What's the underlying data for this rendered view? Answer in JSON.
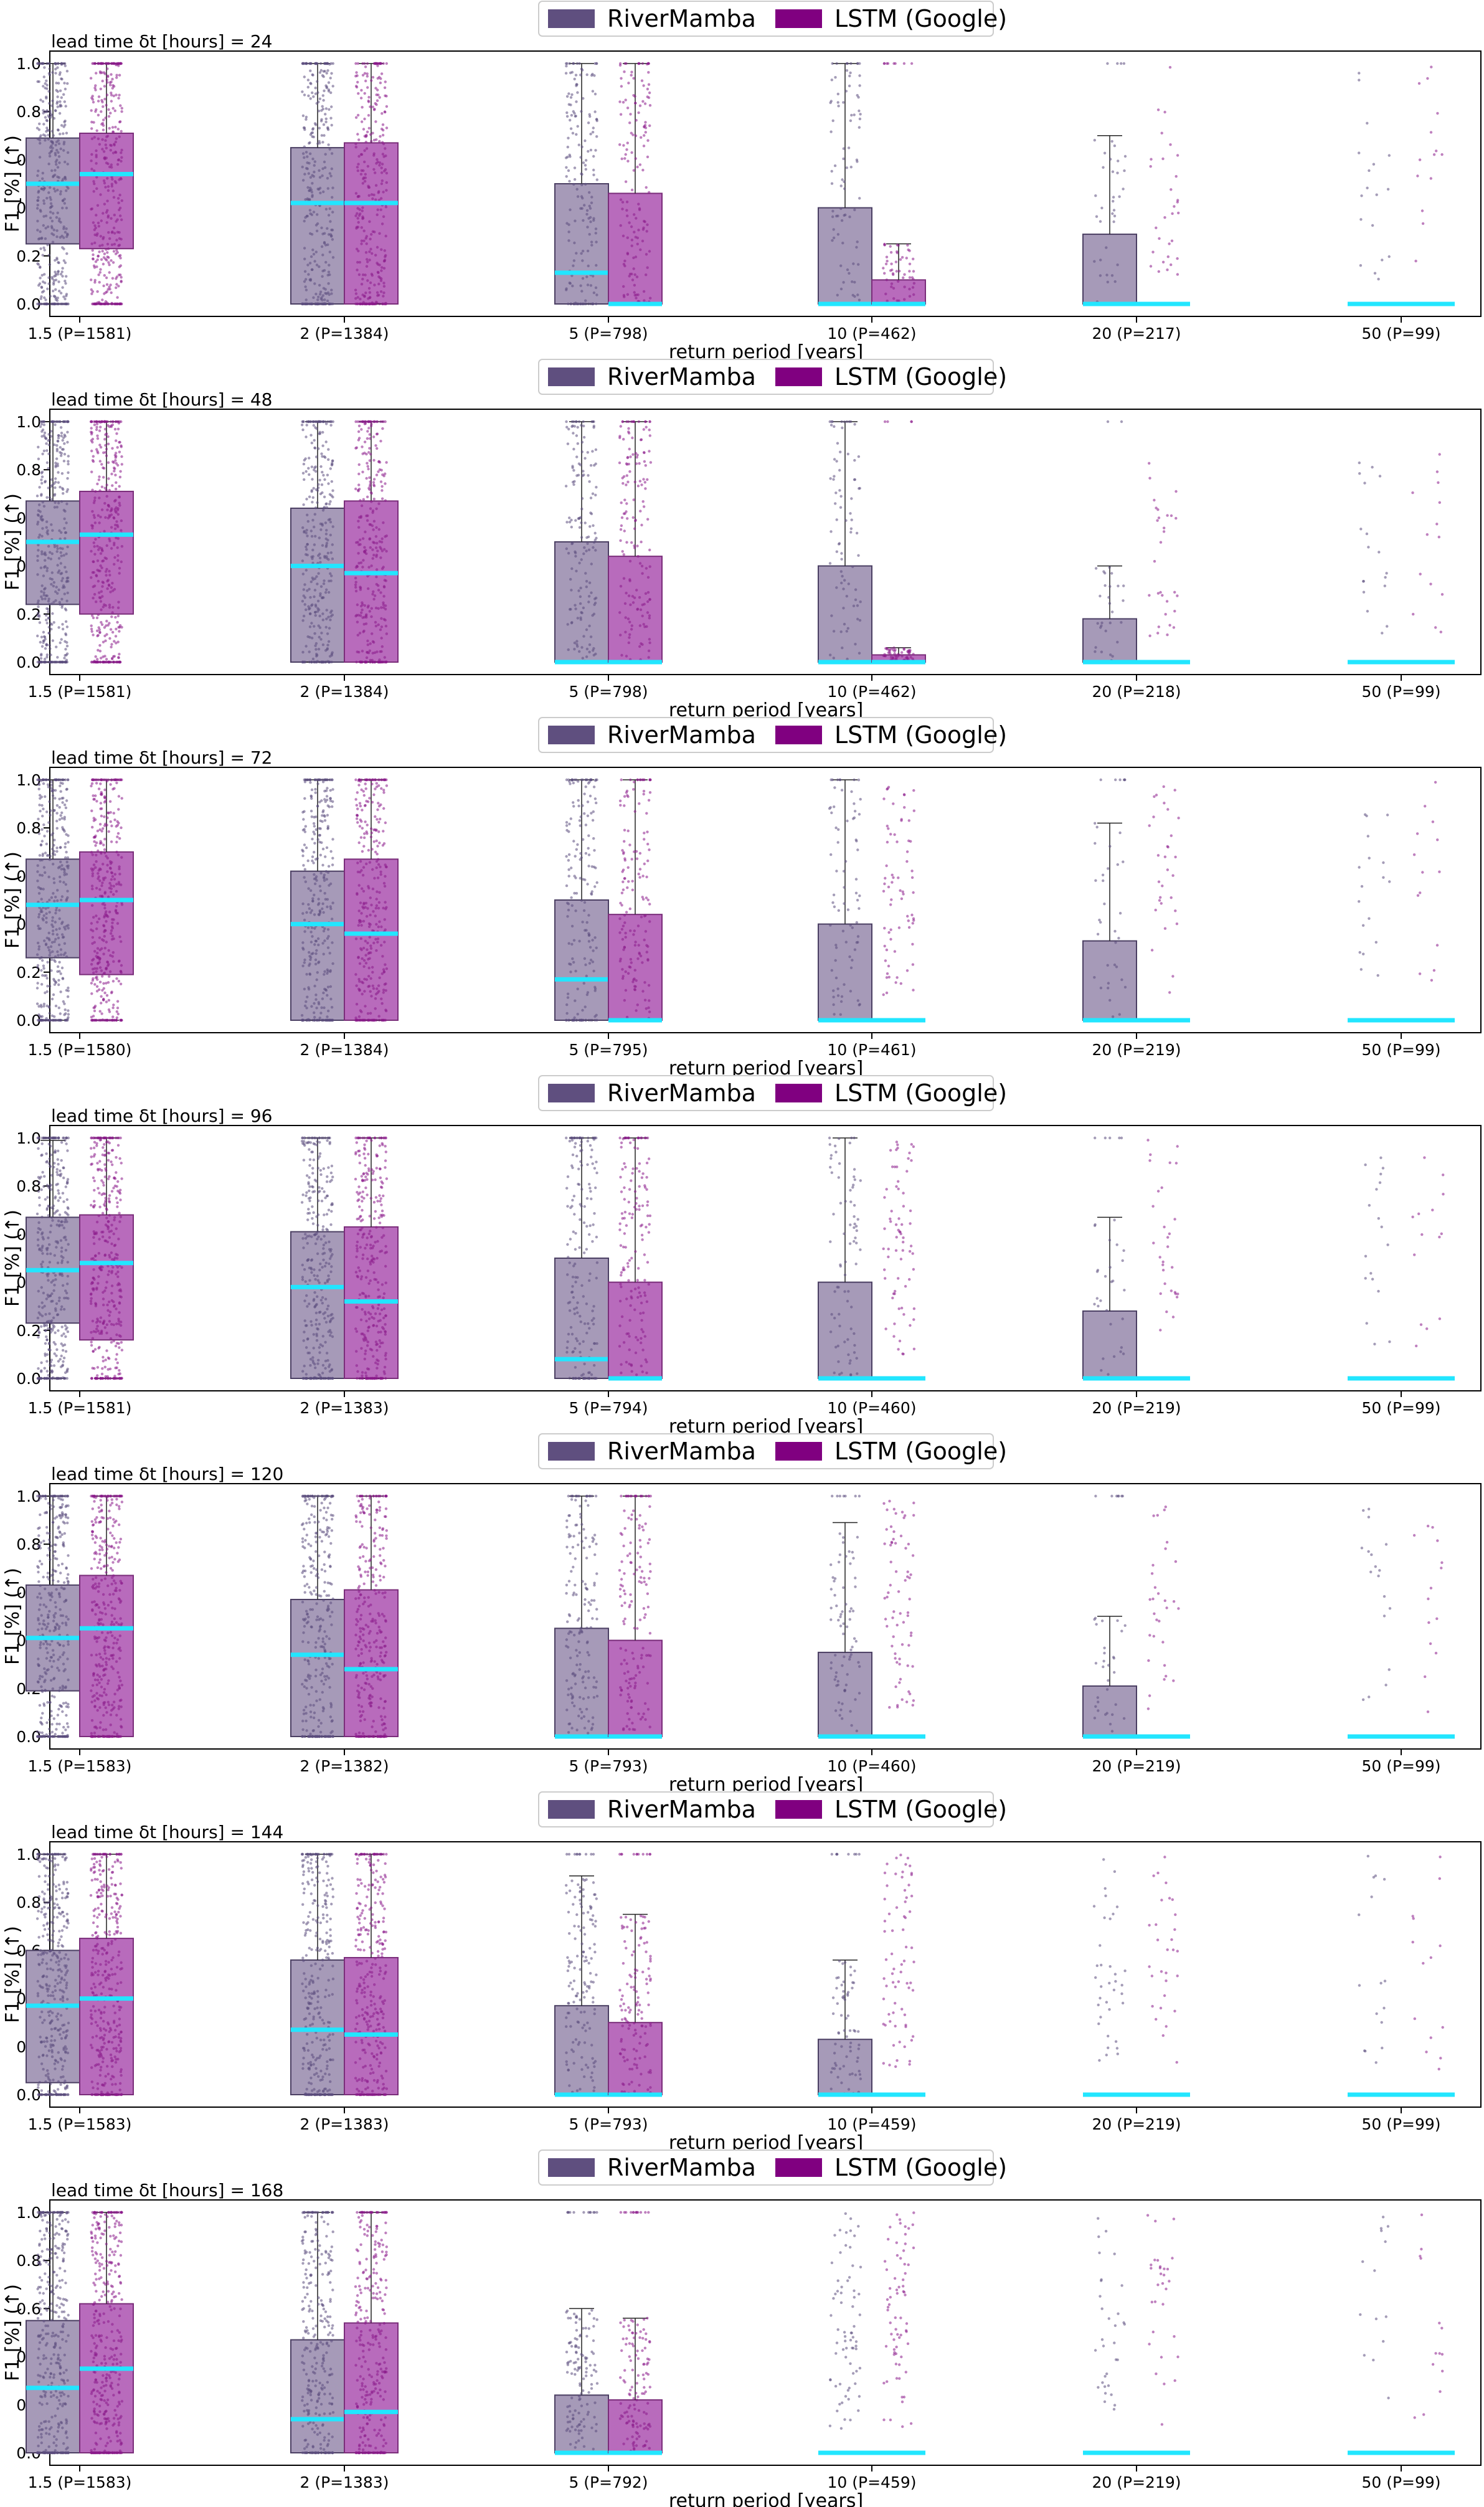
{
  "colors": {
    "rivermamba_fill": "#a69ab8",
    "rivermamba_edge": "#4b3f63",
    "rivermamba_legend": "#5f4f7f",
    "rivermamba_dot": "#5b4c7d",
    "lstm_fill": "#b86bbc",
    "lstm_edge": "#7a2d7a",
    "lstm_legend": "#800080",
    "lstm_dot": "#8a1a8a",
    "median": "#22e6ff",
    "whisker": "#222222"
  },
  "legend": {
    "items": [
      {
        "label": "RiverMamba",
        "swatch": "rivermamba_legend"
      },
      {
        "label": "LSTM (Google)",
        "swatch": "lstm_legend"
      }
    ]
  },
  "chart_data": {
    "type": "box",
    "xlabel": "return period [years]",
    "ylabel": "F1 [%] (↑)",
    "ylim": [
      0,
      1
    ],
    "yticks": [
      "0.0",
      "0.2",
      "0.4",
      "0.6",
      "0.8",
      "1.0"
    ],
    "series": [
      "RiverMamba",
      "LSTM (Google)"
    ],
    "panels": [
      {
        "title": "lead time δt [hours] = 24",
        "categories": [
          "1.5 (P=1581)",
          "2 (P=1384)",
          "5 (P=798)",
          "10 (P=462)",
          "20 (P=217)",
          "50 (P=99)"
        ],
        "rivermamba": [
          {
            "q1": 0.25,
            "q3": 0.69,
            "median": 0.5,
            "wlo": 0.0,
            "whi": 1.0,
            "n": 380
          },
          {
            "q1": 0.0,
            "q3": 0.65,
            "median": 0.42,
            "wlo": 0.0,
            "whi": 1.0,
            "n": 320
          },
          {
            "q1": 0.0,
            "q3": 0.5,
            "median": 0.13,
            "wlo": 0.0,
            "whi": 1.0,
            "n": 180
          },
          {
            "q1": 0.0,
            "q3": 0.4,
            "median": 0.0,
            "wlo": 0.0,
            "whi": 1.0,
            "n": 90
          },
          {
            "q1": 0.0,
            "q3": 0.29,
            "median": 0.0,
            "wlo": 0.0,
            "whi": 0.7,
            "n": 40
          },
          {
            "q1": 0.0,
            "q3": 0.0,
            "median": 0.0,
            "wlo": 0.0,
            "whi": 0.0,
            "n": 18
          }
        ],
        "lstm": [
          {
            "q1": 0.23,
            "q3": 0.71,
            "median": 0.54,
            "wlo": 0.0,
            "whi": 1.0,
            "n": 380
          },
          {
            "q1": 0.0,
            "q3": 0.67,
            "median": 0.42,
            "wlo": 0.0,
            "whi": 1.0,
            "n": 320
          },
          {
            "q1": 0.0,
            "q3": 0.46,
            "median": 0.0,
            "wlo": 0.0,
            "whi": 1.0,
            "n": 170
          },
          {
            "q1": 0.0,
            "q3": 0.1,
            "median": 0.0,
            "wlo": 0.0,
            "whi": 0.25,
            "n": 70
          },
          {
            "q1": 0.0,
            "q3": 0.0,
            "median": 0.0,
            "wlo": 0.0,
            "whi": 0.0,
            "n": 30
          },
          {
            "q1": 0.0,
            "q3": 0.0,
            "median": 0.0,
            "wlo": 0.0,
            "whi": 0.0,
            "n": 14
          }
        ]
      },
      {
        "title": "lead time δt [hours] = 48",
        "categories": [
          "1.5 (P=1581)",
          "2 (P=1384)",
          "5 (P=798)",
          "10 (P=462)",
          "20 (P=218)",
          "50 (P=99)"
        ],
        "rivermamba": [
          {
            "q1": 0.24,
            "q3": 0.67,
            "median": 0.5,
            "wlo": 0.0,
            "whi": 1.0,
            "n": 380
          },
          {
            "q1": 0.0,
            "q3": 0.64,
            "median": 0.4,
            "wlo": 0.0,
            "whi": 1.0,
            "n": 320
          },
          {
            "q1": 0.0,
            "q3": 0.5,
            "median": 0.0,
            "wlo": 0.0,
            "whi": 1.0,
            "n": 180
          },
          {
            "q1": 0.0,
            "q3": 0.4,
            "median": 0.0,
            "wlo": 0.0,
            "whi": 1.0,
            "n": 90
          },
          {
            "q1": 0.0,
            "q3": 0.18,
            "median": 0.0,
            "wlo": 0.0,
            "whi": 0.4,
            "n": 40
          },
          {
            "q1": 0.0,
            "q3": 0.0,
            "median": 0.0,
            "wlo": 0.0,
            "whi": 0.0,
            "n": 18
          }
        ],
        "lstm": [
          {
            "q1": 0.2,
            "q3": 0.71,
            "median": 0.53,
            "wlo": 0.0,
            "whi": 1.0,
            "n": 380
          },
          {
            "q1": 0.0,
            "q3": 0.67,
            "median": 0.37,
            "wlo": 0.0,
            "whi": 1.0,
            "n": 320
          },
          {
            "q1": 0.0,
            "q3": 0.44,
            "median": 0.0,
            "wlo": 0.0,
            "whi": 1.0,
            "n": 170
          },
          {
            "q1": 0.0,
            "q3": 0.03,
            "median": 0.0,
            "wlo": 0.0,
            "whi": 0.06,
            "n": 70
          },
          {
            "q1": 0.0,
            "q3": 0.0,
            "median": 0.0,
            "wlo": 0.0,
            "whi": 0.0,
            "n": 30
          },
          {
            "q1": 0.0,
            "q3": 0.0,
            "median": 0.0,
            "wlo": 0.0,
            "whi": 0.0,
            "n": 14
          }
        ]
      },
      {
        "title": "lead time δt [hours] = 72",
        "categories": [
          "1.5 (P=1580)",
          "2 (P=1384)",
          "5 (P=795)",
          "10 (P=461)",
          "20 (P=219)",
          "50 (P=99)"
        ],
        "rivermamba": [
          {
            "q1": 0.26,
            "q3": 0.67,
            "median": 0.48,
            "wlo": 0.0,
            "whi": 1.0,
            "n": 380
          },
          {
            "q1": 0.0,
            "q3": 0.62,
            "median": 0.4,
            "wlo": 0.0,
            "whi": 1.0,
            "n": 320
          },
          {
            "q1": 0.0,
            "q3": 0.5,
            "median": 0.17,
            "wlo": 0.0,
            "whi": 1.0,
            "n": 180
          },
          {
            "q1": 0.0,
            "q3": 0.4,
            "median": 0.0,
            "wlo": 0.0,
            "whi": 1.0,
            "n": 90
          },
          {
            "q1": 0.0,
            "q3": 0.33,
            "median": 0.0,
            "wlo": 0.0,
            "whi": 0.82,
            "n": 40
          },
          {
            "q1": 0.0,
            "q3": 0.0,
            "median": 0.0,
            "wlo": 0.0,
            "whi": 0.0,
            "n": 18
          }
        ],
        "lstm": [
          {
            "q1": 0.19,
            "q3": 0.7,
            "median": 0.5,
            "wlo": 0.0,
            "whi": 1.0,
            "n": 380
          },
          {
            "q1": 0.0,
            "q3": 0.67,
            "median": 0.36,
            "wlo": 0.0,
            "whi": 1.0,
            "n": 320
          },
          {
            "q1": 0.0,
            "q3": 0.44,
            "median": 0.0,
            "wlo": 0.0,
            "whi": 1.0,
            "n": 170
          },
          {
            "q1": 0.0,
            "q3": 0.0,
            "median": 0.0,
            "wlo": 0.0,
            "whi": 0.0,
            "n": 70
          },
          {
            "q1": 0.0,
            "q3": 0.0,
            "median": 0.0,
            "wlo": 0.0,
            "whi": 0.0,
            "n": 30
          },
          {
            "q1": 0.0,
            "q3": 0.0,
            "median": 0.0,
            "wlo": 0.0,
            "whi": 0.0,
            "n": 14
          }
        ]
      },
      {
        "title": "lead time δt [hours] = 96",
        "categories": [
          "1.5 (P=1581)",
          "2 (P=1383)",
          "5 (P=794)",
          "10 (P=460)",
          "20 (P=219)",
          "50 (P=99)"
        ],
        "rivermamba": [
          {
            "q1": 0.23,
            "q3": 0.67,
            "median": 0.45,
            "wlo": 0.0,
            "whi": 0.99,
            "n": 380
          },
          {
            "q1": 0.0,
            "q3": 0.61,
            "median": 0.38,
            "wlo": 0.0,
            "whi": 1.0,
            "n": 320
          },
          {
            "q1": 0.0,
            "q3": 0.5,
            "median": 0.08,
            "wlo": 0.0,
            "whi": 1.0,
            "n": 180
          },
          {
            "q1": 0.0,
            "q3": 0.4,
            "median": 0.0,
            "wlo": 0.0,
            "whi": 1.0,
            "n": 90
          },
          {
            "q1": 0.0,
            "q3": 0.28,
            "median": 0.0,
            "wlo": 0.0,
            "whi": 0.67,
            "n": 40
          },
          {
            "q1": 0.0,
            "q3": 0.0,
            "median": 0.0,
            "wlo": 0.0,
            "whi": 0.0,
            "n": 18
          }
        ],
        "lstm": [
          {
            "q1": 0.16,
            "q3": 0.68,
            "median": 0.48,
            "wlo": 0.0,
            "whi": 1.0,
            "n": 380
          },
          {
            "q1": 0.0,
            "q3": 0.63,
            "median": 0.32,
            "wlo": 0.0,
            "whi": 1.0,
            "n": 320
          },
          {
            "q1": 0.0,
            "q3": 0.4,
            "median": 0.0,
            "wlo": 0.0,
            "whi": 1.0,
            "n": 170
          },
          {
            "q1": 0.0,
            "q3": 0.0,
            "median": 0.0,
            "wlo": 0.0,
            "whi": 0.0,
            "n": 70
          },
          {
            "q1": 0.0,
            "q3": 0.0,
            "median": 0.0,
            "wlo": 0.0,
            "whi": 0.0,
            "n": 30
          },
          {
            "q1": 0.0,
            "q3": 0.0,
            "median": 0.0,
            "wlo": 0.0,
            "whi": 0.0,
            "n": 14
          }
        ]
      },
      {
        "title": "lead time δt [hours] = 120",
        "categories": [
          "1.5 (P=1583)",
          "2 (P=1382)",
          "5 (P=793)",
          "10 (P=460)",
          "20 (P=219)",
          "50 (P=99)"
        ],
        "rivermamba": [
          {
            "q1": 0.19,
            "q3": 0.63,
            "median": 0.41,
            "wlo": 0.0,
            "whi": 1.0,
            "n": 380
          },
          {
            "q1": 0.0,
            "q3": 0.57,
            "median": 0.34,
            "wlo": 0.0,
            "whi": 1.0,
            "n": 320
          },
          {
            "q1": 0.0,
            "q3": 0.45,
            "median": 0.0,
            "wlo": 0.0,
            "whi": 1.0,
            "n": 180
          },
          {
            "q1": 0.0,
            "q3": 0.35,
            "median": 0.0,
            "wlo": 0.0,
            "whi": 0.89,
            "n": 90
          },
          {
            "q1": 0.0,
            "q3": 0.21,
            "median": 0.0,
            "wlo": 0.0,
            "whi": 0.5,
            "n": 40
          },
          {
            "q1": 0.0,
            "q3": 0.0,
            "median": 0.0,
            "wlo": 0.0,
            "whi": 0.0,
            "n": 18
          }
        ],
        "lstm": [
          {
            "q1": 0.0,
            "q3": 0.67,
            "median": 0.45,
            "wlo": 0.0,
            "whi": 1.0,
            "n": 380
          },
          {
            "q1": 0.0,
            "q3": 0.61,
            "median": 0.28,
            "wlo": 0.0,
            "whi": 1.0,
            "n": 320
          },
          {
            "q1": 0.0,
            "q3": 0.4,
            "median": 0.0,
            "wlo": 0.0,
            "whi": 1.0,
            "n": 170
          },
          {
            "q1": 0.0,
            "q3": 0.0,
            "median": 0.0,
            "wlo": 0.0,
            "whi": 0.0,
            "n": 70
          },
          {
            "q1": 0.0,
            "q3": 0.0,
            "median": 0.0,
            "wlo": 0.0,
            "whi": 0.0,
            "n": 30
          },
          {
            "q1": 0.0,
            "q3": 0.0,
            "median": 0.0,
            "wlo": 0.0,
            "whi": 0.0,
            "n": 14
          }
        ]
      },
      {
        "title": "lead time δt [hours] = 144",
        "categories": [
          "1.5 (P=1583)",
          "2 (P=1383)",
          "5 (P=793)",
          "10 (P=459)",
          "20 (P=219)",
          "50 (P=99)"
        ],
        "rivermamba": [
          {
            "q1": 0.05,
            "q3": 0.6,
            "median": 0.37,
            "wlo": 0.0,
            "whi": 1.0,
            "n": 380
          },
          {
            "q1": 0.0,
            "q3": 0.56,
            "median": 0.27,
            "wlo": 0.0,
            "whi": 1.0,
            "n": 320
          },
          {
            "q1": 0.0,
            "q3": 0.37,
            "median": 0.0,
            "wlo": 0.0,
            "whi": 0.91,
            "n": 170
          },
          {
            "q1": 0.0,
            "q3": 0.23,
            "median": 0.0,
            "wlo": 0.0,
            "whi": 0.56,
            "n": 80
          },
          {
            "q1": 0.0,
            "q3": 0.0,
            "median": 0.0,
            "wlo": 0.0,
            "whi": 0.0,
            "n": 36
          },
          {
            "q1": 0.0,
            "q3": 0.0,
            "median": 0.0,
            "wlo": 0.0,
            "whi": 0.0,
            "n": 16
          }
        ],
        "lstm": [
          {
            "q1": 0.0,
            "q3": 0.65,
            "median": 0.4,
            "wlo": 0.0,
            "whi": 1.0,
            "n": 380
          },
          {
            "q1": 0.0,
            "q3": 0.57,
            "median": 0.25,
            "wlo": 0.0,
            "whi": 1.0,
            "n": 320
          },
          {
            "q1": 0.0,
            "q3": 0.3,
            "median": 0.0,
            "wlo": 0.0,
            "whi": 0.75,
            "n": 160
          },
          {
            "q1": 0.0,
            "q3": 0.0,
            "median": 0.0,
            "wlo": 0.0,
            "whi": 0.0,
            "n": 70
          },
          {
            "q1": 0.0,
            "q3": 0.0,
            "median": 0.0,
            "wlo": 0.0,
            "whi": 0.0,
            "n": 30
          },
          {
            "q1": 0.0,
            "q3": 0.0,
            "median": 0.0,
            "wlo": 0.0,
            "whi": 0.0,
            "n": 14
          }
        ]
      },
      {
        "title": "lead time δt [hours] = 168",
        "categories": [
          "1.5 (P=1583)",
          "2 (P=1383)",
          "5 (P=792)",
          "10 (P=459)",
          "20 (P=219)",
          "50 (P=99)"
        ],
        "rivermamba": [
          {
            "q1": 0.0,
            "q3": 0.55,
            "median": 0.27,
            "wlo": 0.0,
            "whi": 1.0,
            "n": 380
          },
          {
            "q1": 0.0,
            "q3": 0.47,
            "median": 0.14,
            "wlo": 0.0,
            "whi": 1.0,
            "n": 300
          },
          {
            "q1": 0.0,
            "q3": 0.24,
            "median": 0.0,
            "wlo": 0.0,
            "whi": 0.6,
            "n": 150
          },
          {
            "q1": 0.0,
            "q3": 0.0,
            "median": 0.0,
            "wlo": 0.0,
            "whi": 0.0,
            "n": 70
          },
          {
            "q1": 0.0,
            "q3": 0.0,
            "median": 0.0,
            "wlo": 0.0,
            "whi": 0.0,
            "n": 32
          },
          {
            "q1": 0.0,
            "q3": 0.0,
            "median": 0.0,
            "wlo": 0.0,
            "whi": 0.0,
            "n": 14
          }
        ],
        "lstm": [
          {
            "q1": 0.0,
            "q3": 0.62,
            "median": 0.35,
            "wlo": 0.0,
            "whi": 1.0,
            "n": 380
          },
          {
            "q1": 0.0,
            "q3": 0.54,
            "median": 0.17,
            "wlo": 0.0,
            "whi": 1.0,
            "n": 300
          },
          {
            "q1": 0.0,
            "q3": 0.22,
            "median": 0.0,
            "wlo": 0.0,
            "whi": 0.56,
            "n": 150
          },
          {
            "q1": 0.0,
            "q3": 0.0,
            "median": 0.0,
            "wlo": 0.0,
            "whi": 0.0,
            "n": 70
          },
          {
            "q1": 0.0,
            "q3": 0.0,
            "median": 0.0,
            "wlo": 0.0,
            "whi": 0.0,
            "n": 30
          },
          {
            "q1": 0.0,
            "q3": 0.0,
            "median": 0.0,
            "wlo": 0.0,
            "whi": 0.0,
            "n": 14
          }
        ]
      }
    ]
  }
}
